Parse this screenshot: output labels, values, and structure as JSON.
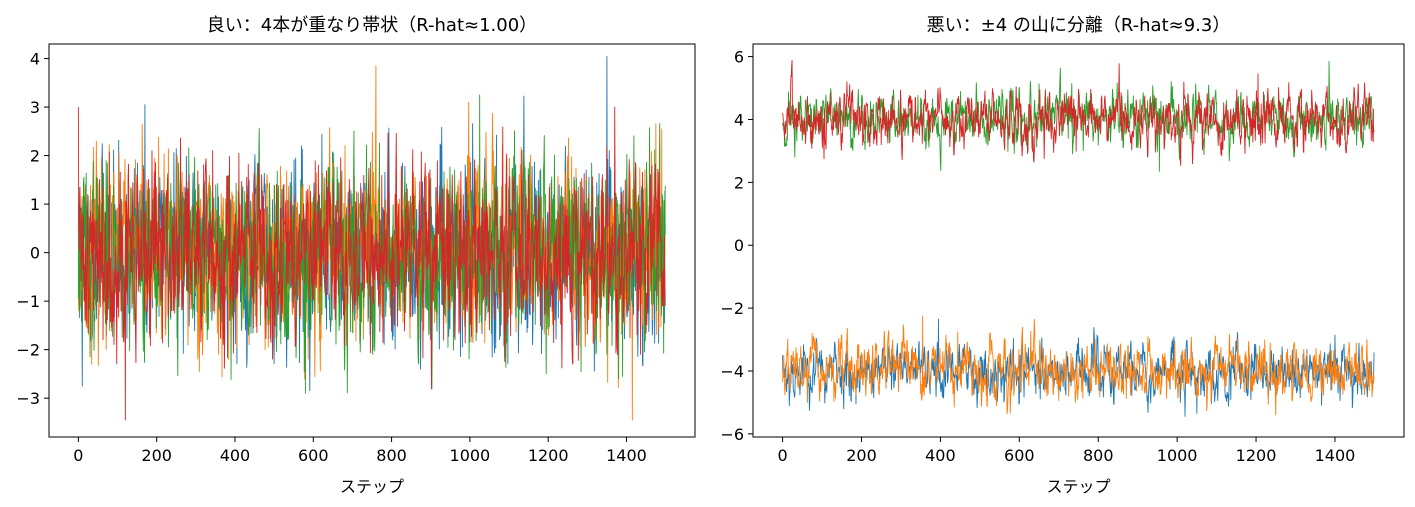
{
  "chart_data": [
    {
      "type": "line",
      "title": "良い：4本が重なり帯状（R-hat≈1.00）",
      "xlabel": "ステップ",
      "ylabel": "",
      "xlim": [
        -75,
        1575
      ],
      "ylim": [
        -3.8,
        4.3
      ],
      "xticks": [
        0,
        200,
        400,
        600,
        800,
        1000,
        1200,
        1400
      ],
      "yticks": [
        -3,
        -2,
        -1,
        0,
        1,
        2,
        3,
        4
      ],
      "ytick_labels": [
        "−3",
        "−2",
        "−1",
        "0",
        "1",
        "2",
        "3",
        "4"
      ],
      "grid": false,
      "n_steps": 1500,
      "series": [
        {
          "color": "#1f77b4",
          "center": 0.0,
          "spread": 0.9,
          "seed": 11,
          "extremes": [
            [
              170,
              3.05
            ],
            [
              10,
              -2.75
            ],
            [
              570,
              2.2
            ]
          ]
        },
        {
          "color": "#ff7f0e",
          "center": 0.0,
          "spread": 0.9,
          "seed": 23,
          "extremes": [
            [
              760,
              3.85
            ],
            [
              1415,
              -3.45
            ],
            [
              1490,
              2.55
            ]
          ]
        },
        {
          "color": "#2ca02c",
          "center": 0.0,
          "spread": 0.9,
          "seed": 37,
          "extremes": [
            [
              1025,
              3.25
            ],
            [
              580,
              -2.9
            ],
            [
              1380,
              -2.6
            ]
          ]
        },
        {
          "color": "#d62728",
          "center": 0.0,
          "spread": 0.9,
          "seed": 41,
          "extremes": [
            [
              120,
              -3.45
            ],
            [
              0,
              3.0
            ],
            [
              1370,
              3.0
            ]
          ]
        }
      ]
    },
    {
      "type": "line",
      "title": "悪い：±4 の山に分離（R-hat≈9.3）",
      "xlabel": "ステップ",
      "ylabel": "",
      "xlim": [
        -75,
        1575
      ],
      "ylim": [
        -6.1,
        6.4
      ],
      "xticks": [
        0,
        200,
        400,
        600,
        800,
        1000,
        1200,
        1400
      ],
      "yticks": [
        -6,
        -4,
        -2,
        0,
        2,
        4,
        6
      ],
      "ytick_labels": [
        "−6",
        "−4",
        "−2",
        "0",
        "2",
        "4",
        "6"
      ],
      "grid": false,
      "n_steps": 1500,
      "series": [
        {
          "color": "#1f77b4",
          "center": -4.0,
          "spread": 0.45,
          "seed": 53,
          "extremes": [
            [
              395,
              -2.35
            ],
            [
              1050,
              -5.35
            ]
          ]
        },
        {
          "color": "#ff7f0e",
          "center": -4.0,
          "spread": 0.45,
          "seed": 67,
          "extremes": [
            [
              355,
              -2.25
            ],
            [
              1250,
              -5.4
            ]
          ]
        },
        {
          "color": "#2ca02c",
          "center": 4.0,
          "spread": 0.45,
          "seed": 71,
          "extremes": [
            [
              1385,
              5.85
            ],
            [
              955,
              2.35
            ]
          ]
        },
        {
          "color": "#d62728",
          "center": 4.0,
          "spread": 0.45,
          "seed": 83,
          "extremes": [
            [
              1205,
              5.45
            ],
            [
              105,
              2.75
            ]
          ]
        }
      ]
    }
  ]
}
